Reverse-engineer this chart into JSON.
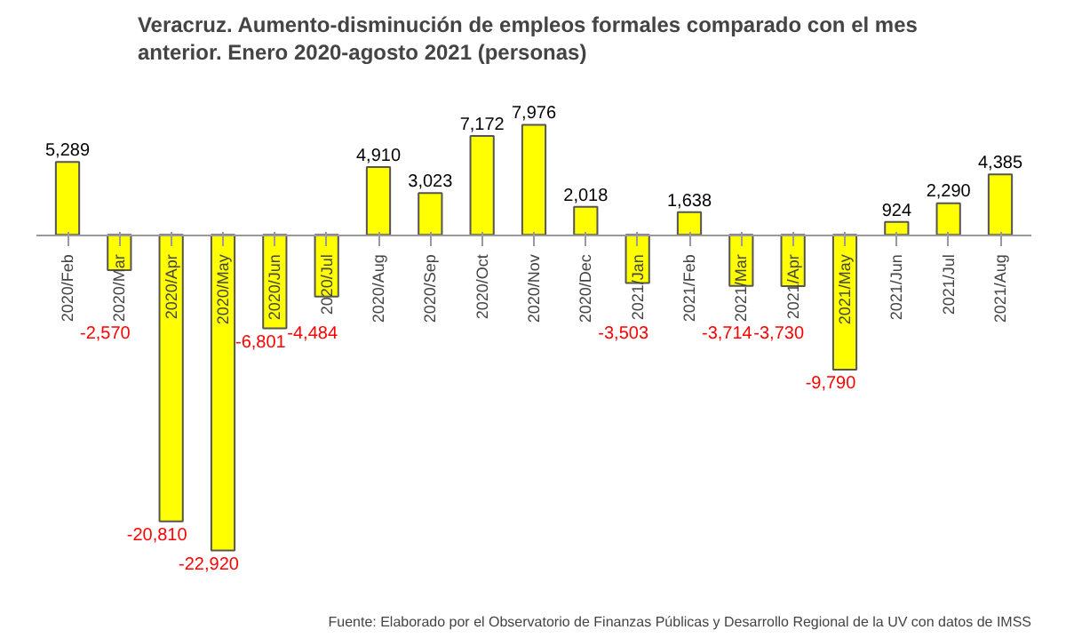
{
  "chart_data": {
    "type": "bar",
    "title": "Veracruz. Aumento-disminución  de empleos formales comparado  con el mes\nanterior. Enero 2020-agosto 2021 (personas)",
    "categories": [
      "2020/Feb",
      "2020/Mar",
      "2020/Apr",
      "2020/May",
      "2020/Jun",
      "2020/Jul",
      "2020/Aug",
      "2020/Sep",
      "2020/Oct",
      "2020/Nov",
      "2020/Dec",
      "2021/Jan",
      "2021/Feb",
      "2021/Mar",
      "2021/Apr",
      "2021/May",
      "2021/Jun",
      "2021/Jul",
      "2021/Aug"
    ],
    "values": [
      5289,
      -2570,
      -20810,
      -22920,
      -6801,
      -4484,
      4910,
      3023,
      7172,
      7976,
      2018,
      -3503,
      1638,
      -3714,
      -3730,
      -9790,
      924,
      2290,
      4385
    ],
    "value_labels": [
      "5,289",
      "-2,570",
      "-20,810",
      "-22,920",
      "-6,801",
      "-4,484",
      "4,910",
      "3,023",
      "7,172",
      "7,976",
      "2,018",
      "-3,503",
      "1,638",
      "-3,714",
      "-3,730",
      "-9,790",
      "924",
      "2,290",
      "4,385"
    ],
    "color": "#ffff00",
    "annotations": [
      "Fuente: Elaborado por el Observatorio de Finanzas Públicas y Desarrollo Regional de la UV con datos de IMSS"
    ]
  }
}
